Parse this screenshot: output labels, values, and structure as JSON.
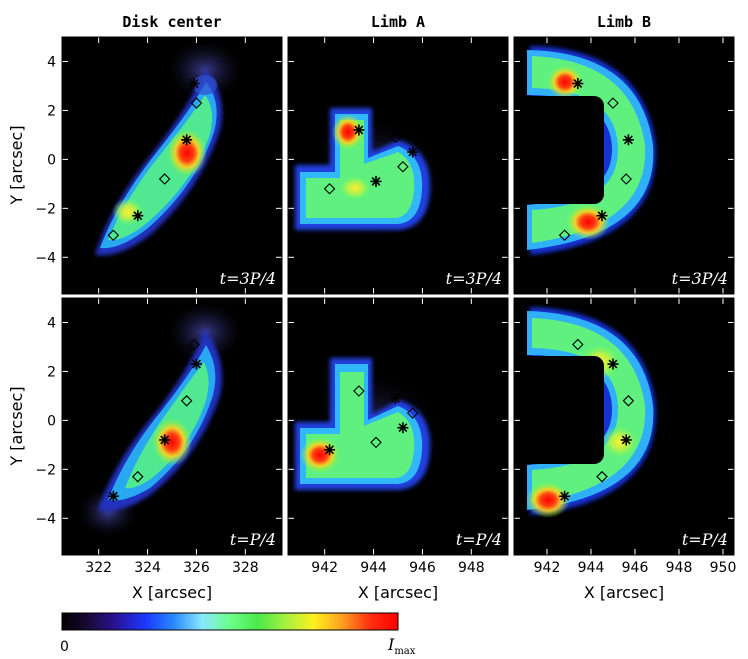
{
  "chart_data": {
    "type": "heatmap",
    "column_titles": [
      "Disk center",
      "Limb A",
      "Limb B"
    ],
    "row_labels": [
      "t=3P/4",
      "t=P/4"
    ],
    "ylabel": "Y [arcsec]",
    "xlabel": "X [arcsec]",
    "yticks": [
      -4,
      -2,
      0,
      2,
      4
    ],
    "ylim": [
      -5.5,
      5
    ],
    "x_axes": [
      {
        "xlim": [
          320.5,
          329.5
        ],
        "ticks": [
          322,
          324,
          326,
          328
        ]
      },
      {
        "xlim": [
          940.5,
          949.5
        ],
        "ticks": [
          942,
          944,
          946,
          948
        ]
      },
      {
        "xlim": [
          940.5,
          950.5
        ],
        "ticks": [
          942,
          944,
          946,
          948,
          950
        ]
      }
    ],
    "colorbar": {
      "min_label": "0",
      "max_label": "I",
      "max_sub": "max",
      "colors": [
        "#000000",
        "#1a0a3a",
        "#2a14a0",
        "#1a3aff",
        "#2a8aff",
        "#8ae8ff",
        "#6cff8a",
        "#4ae84a",
        "#a8f040",
        "#fff020",
        "#ffa020",
        "#ff3010",
        "#ff0000"
      ]
    },
    "panels": [
      {
        "col": 0,
        "row": 0,
        "stars": [
          [
            325.9,
            3.1
          ],
          [
            325.6,
            0.8
          ],
          [
            323.6,
            -2.3
          ]
        ],
        "diamonds": [
          [
            326.0,
            2.3
          ],
          [
            324.7,
            -0.8
          ],
          [
            322.6,
            -3.1
          ]
        ]
      },
      {
        "col": 1,
        "row": 0,
        "stars": [
          [
            943.4,
            1.2
          ],
          [
            944.1,
            -0.9
          ],
          [
            945.6,
            0.3
          ]
        ],
        "diamonds": [
          [
            944.9,
            0.9
          ],
          [
            945.2,
            -0.3
          ],
          [
            942.2,
            -1.2
          ]
        ]
      },
      {
        "col": 2,
        "row": 0,
        "stars": [
          [
            943.4,
            3.1
          ],
          [
            945.7,
            0.8
          ],
          [
            944.5,
            -2.3
          ]
        ],
        "diamonds": [
          [
            945.0,
            2.3
          ],
          [
            945.6,
            -0.8
          ],
          [
            942.8,
            -3.1
          ]
        ]
      },
      {
        "col": 0,
        "row": 1,
        "stars": [
          [
            326.0,
            2.3
          ],
          [
            324.7,
            -0.8
          ],
          [
            322.6,
            -3.1
          ]
        ],
        "diamonds": [
          [
            325.9,
            3.1
          ],
          [
            325.6,
            0.8
          ],
          [
            323.6,
            -2.3
          ]
        ]
      },
      {
        "col": 1,
        "row": 1,
        "stars": [
          [
            944.9,
            0.9
          ],
          [
            945.2,
            -0.3
          ],
          [
            942.2,
            -1.2
          ]
        ],
        "diamonds": [
          [
            943.4,
            1.2
          ],
          [
            944.1,
            -0.9
          ],
          [
            945.6,
            0.3
          ]
        ]
      },
      {
        "col": 2,
        "row": 1,
        "stars": [
          [
            945.0,
            2.3
          ],
          [
            945.6,
            -0.8
          ],
          [
            942.8,
            -3.1
          ]
        ],
        "diamonds": [
          [
            943.4,
            3.1
          ],
          [
            945.7,
            0.8
          ],
          [
            944.5,
            -2.3
          ]
        ]
      }
    ]
  }
}
